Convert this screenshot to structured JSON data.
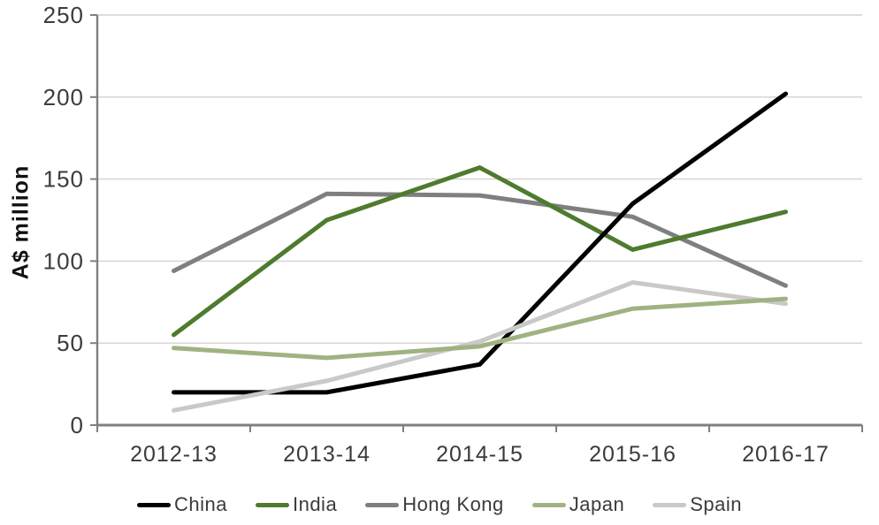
{
  "chart_data": {
    "type": "line",
    "title": "",
    "ylabel": "A$ million",
    "xlabel": "",
    "categories": [
      "2012-13",
      "2013-14",
      "2014-15",
      "2015-16",
      "2016-17"
    ],
    "series": [
      {
        "name": "China",
        "color": "#000000",
        "values": [
          20,
          20,
          37,
          135,
          202
        ]
      },
      {
        "name": "India",
        "color": "#4e7b2e",
        "values": [
          55,
          125,
          157,
          107,
          130
        ]
      },
      {
        "name": "Hong Kong",
        "color": "#7f7f7f",
        "values": [
          94,
          141,
          140,
          127,
          85
        ]
      },
      {
        "name": "Japan",
        "color": "#9fb381",
        "values": [
          47,
          41,
          48,
          71,
          77
        ]
      },
      {
        "name": "Spain",
        "color": "#c9c9c9",
        "values": [
          9,
          27,
          51,
          87,
          74
        ]
      }
    ],
    "ylim": [
      0,
      250
    ],
    "yticks": [
      0,
      50,
      100,
      150,
      200,
      250
    ],
    "grid": "horizontal",
    "legend_position": "bottom",
    "draw_order": [
      "Hong Kong",
      "India",
      "China",
      "Spain",
      "Japan"
    ],
    "line_width": 5,
    "colors": {
      "gridline": "#d2d2d2",
      "axis": "#7f7f7f",
      "tick_label": "#3b3b3b"
    }
  }
}
